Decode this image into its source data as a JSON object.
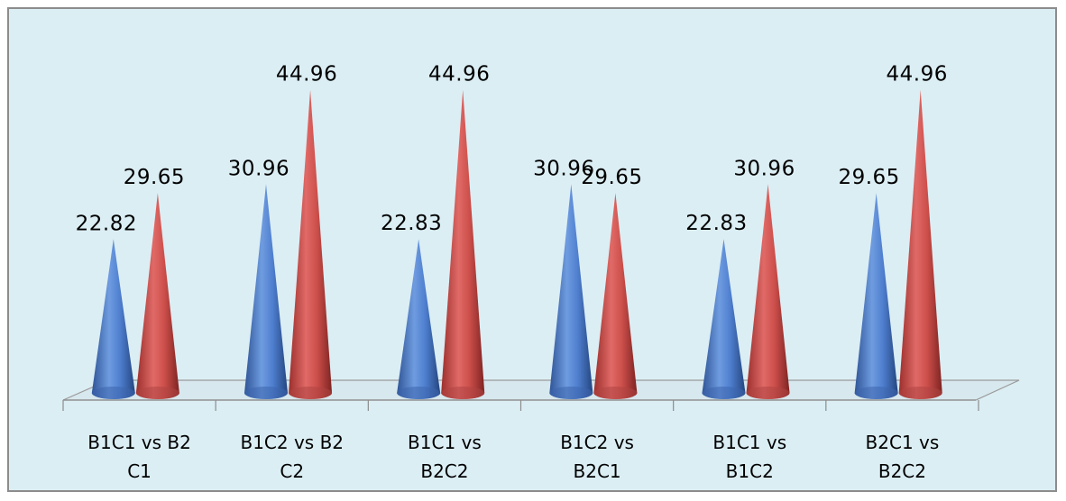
{
  "chart_data": {
    "type": "bar",
    "style": "3d-cone",
    "categories": [
      [
        "B1C1 vs B2",
        "C1"
      ],
      [
        "B1C2 vs B2",
        "C2"
      ],
      [
        "B1C1 vs",
        "B2C2"
      ],
      [
        "B1C2 vs",
        "B2C1"
      ],
      [
        "B1C1 vs",
        "B1C2"
      ],
      [
        "B2C1 vs",
        "B2C2"
      ]
    ],
    "series": [
      {
        "color": "#4472c4",
        "values": [
          22.82,
          30.96,
          22.83,
          30.96,
          22.83,
          29.65
        ]
      },
      {
        "color": "#c0504d",
        "values": [
          29.65,
          44.96,
          44.96,
          29.65,
          30.96,
          44.96
        ]
      }
    ],
    "value_labels": [
      [
        "22.82",
        "30.96",
        "22.83",
        "30.96",
        "22.83",
        "29.65"
      ],
      [
        "29.65",
        "44.96",
        "44.96",
        "29.65",
        "30.96",
        "44.96"
      ]
    ],
    "ylim": [
      0,
      50
    ],
    "grid": false,
    "legend": "none",
    "background_color": "#dbeef4"
  }
}
